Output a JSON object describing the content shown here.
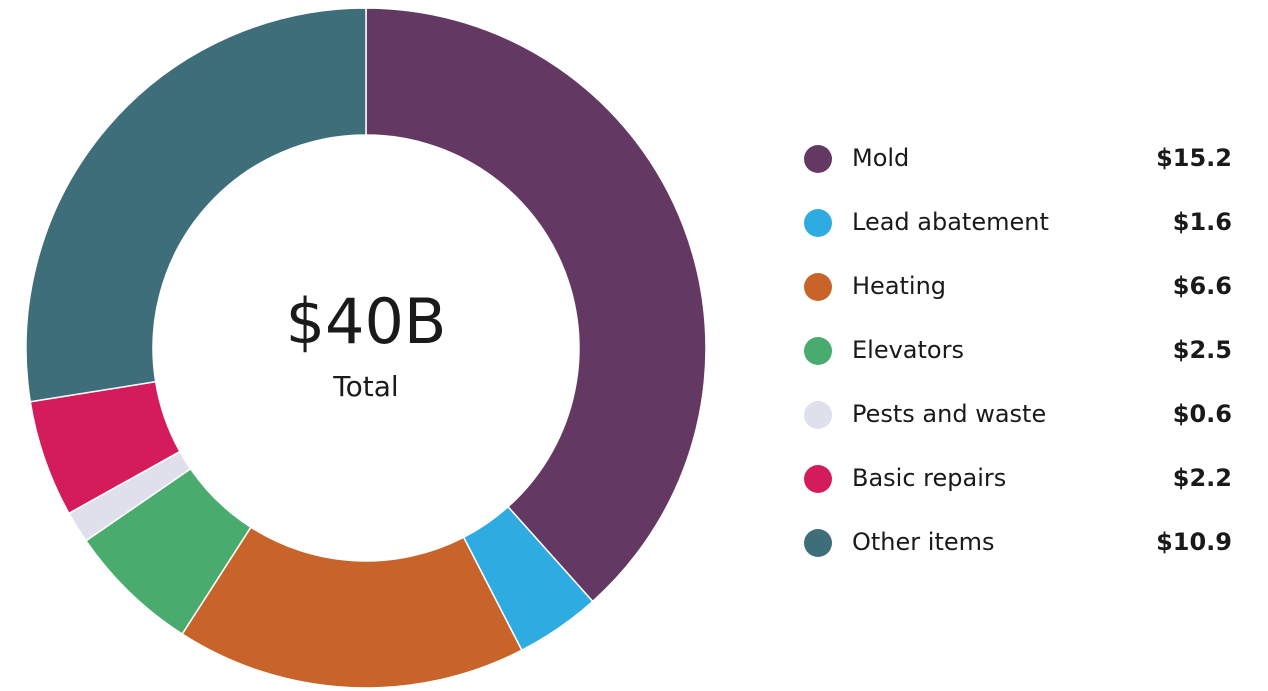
{
  "chart_data": {
    "type": "donut",
    "center_label": "$40B",
    "center_sublabel": "Total",
    "categories": [
      "Mold",
      "Lead abatement",
      "Heating",
      "Elevators",
      "Pests and waste",
      "Basic repairs",
      "Other items"
    ],
    "values": [
      15.2,
      1.6,
      6.6,
      2.5,
      0.6,
      2.2,
      10.9
    ],
    "value_labels": [
      "$15.2",
      "$1.6",
      "$6.6",
      "$2.5",
      "$0.6",
      "$2.2",
      "$10.9"
    ],
    "colors": [
      "#633964",
      "#2eace2",
      "#c8632a",
      "#4aab6e",
      "#e0e0ec",
      "#d41c5c",
      "#3e6e7a"
    ]
  }
}
